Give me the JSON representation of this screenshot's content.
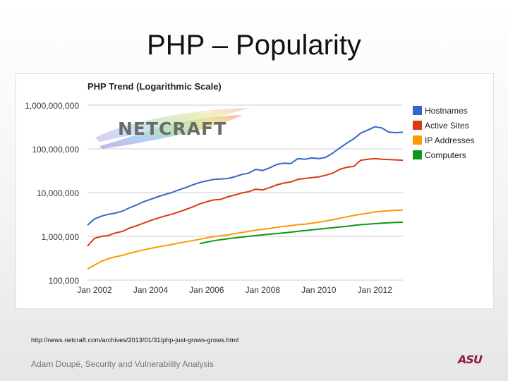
{
  "slide": {
    "title": "PHP – Popularity",
    "source_url": "http://news.netcraft.com/archives/2013/01/31/php-just-grows-grows.html",
    "footer": "Adam Doupé, Security and Vulnerability Analysis",
    "logo_text": "ASU"
  },
  "netcraft_logo_text": "NETCRAFT",
  "chart_data": {
    "type": "line",
    "title": "PHP Trend (Logarithmic Scale)",
    "xlabel": "",
    "ylabel": "",
    "y_scale": "log",
    "ylim": [
      100000,
      1000000000
    ],
    "y_ticks": [
      100000,
      1000000,
      10000000,
      100000000,
      1000000000
    ],
    "y_tick_labels": [
      "100,000",
      "1,000,000",
      "10,000,000",
      "100,000,000",
      "1,000,000,000"
    ],
    "xlim": [
      "2001-10",
      "2013-01"
    ],
    "x_ticks": [
      "2002-01",
      "2004-01",
      "2006-01",
      "2008-01",
      "2010-01",
      "2012-01"
    ],
    "x_tick_labels": [
      "Jan 2002",
      "Jan 2004",
      "Jan 2006",
      "Jan 2008",
      "Jan 2010",
      "Jan 2012"
    ],
    "grid": true,
    "legend": "right",
    "series": [
      {
        "name": "Hostnames",
        "color": "#3366cc",
        "points": [
          [
            "2001-10",
            1800000
          ],
          [
            "2002-01",
            2500000
          ],
          [
            "2002-04",
            2900000
          ],
          [
            "2002-07",
            3200000
          ],
          [
            "2002-10",
            3400000
          ],
          [
            "2003-01",
            3800000
          ],
          [
            "2003-04",
            4500000
          ],
          [
            "2003-07",
            5200000
          ],
          [
            "2003-10",
            6200000
          ],
          [
            "2004-01",
            7000000
          ],
          [
            "2004-04",
            8000000
          ],
          [
            "2004-07",
            9000000
          ],
          [
            "2004-10",
            10000000
          ],
          [
            "2005-01",
            11500000
          ],
          [
            "2005-04",
            13000000
          ],
          [
            "2005-07",
            15000000
          ],
          [
            "2005-10",
            17000000
          ],
          [
            "2006-01",
            18500000
          ],
          [
            "2006-04",
            20000000
          ],
          [
            "2006-07",
            20500000
          ],
          [
            "2006-10",
            21000000
          ],
          [
            "2007-01",
            23000000
          ],
          [
            "2007-04",
            26000000
          ],
          [
            "2007-07",
            28000000
          ],
          [
            "2007-10",
            34000000
          ],
          [
            "2008-01",
            32000000
          ],
          [
            "2008-04",
            37000000
          ],
          [
            "2008-07",
            44000000
          ],
          [
            "2008-10",
            47000000
          ],
          [
            "2009-01",
            46000000
          ],
          [
            "2009-04",
            60000000
          ],
          [
            "2009-07",
            58000000
          ],
          [
            "2009-10",
            62000000
          ],
          [
            "2010-01",
            60000000
          ],
          [
            "2010-04",
            64000000
          ],
          [
            "2010-07",
            80000000
          ],
          [
            "2010-10",
            105000000
          ],
          [
            "2011-01",
            135000000
          ],
          [
            "2011-04",
            170000000
          ],
          [
            "2011-07",
            230000000
          ],
          [
            "2011-10",
            270000000
          ],
          [
            "2012-01",
            320000000
          ],
          [
            "2012-04",
            300000000
          ],
          [
            "2012-07",
            240000000
          ],
          [
            "2012-10",
            235000000
          ],
          [
            "2013-01",
            240000000
          ]
        ]
      },
      {
        "name": "Active Sites",
        "color": "#dc3912",
        "points": [
          [
            "2001-10",
            600000
          ],
          [
            "2002-01",
            900000
          ],
          [
            "2002-04",
            1000000
          ],
          [
            "2002-07",
            1050000
          ],
          [
            "2002-10",
            1200000
          ],
          [
            "2003-01",
            1300000
          ],
          [
            "2003-04",
            1550000
          ],
          [
            "2003-07",
            1750000
          ],
          [
            "2003-10",
            2000000
          ],
          [
            "2004-01",
            2300000
          ],
          [
            "2004-04",
            2600000
          ],
          [
            "2004-07",
            2900000
          ],
          [
            "2004-10",
            3200000
          ],
          [
            "2005-01",
            3600000
          ],
          [
            "2005-04",
            4100000
          ],
          [
            "2005-07",
            4700000
          ],
          [
            "2005-10",
            5500000
          ],
          [
            "2006-01",
            6200000
          ],
          [
            "2006-04",
            6800000
          ],
          [
            "2006-07",
            7000000
          ],
          [
            "2006-10",
            8000000
          ],
          [
            "2007-01",
            8800000
          ],
          [
            "2007-04",
            9800000
          ],
          [
            "2007-07",
            10500000
          ],
          [
            "2007-10",
            12000000
          ],
          [
            "2008-01",
            11500000
          ],
          [
            "2008-04",
            13000000
          ],
          [
            "2008-07",
            15000000
          ],
          [
            "2008-10",
            16500000
          ],
          [
            "2009-01",
            17500000
          ],
          [
            "2009-04",
            20000000
          ],
          [
            "2009-07",
            21000000
          ],
          [
            "2009-10",
            22000000
          ],
          [
            "2010-01",
            23000000
          ],
          [
            "2010-04",
            25000000
          ],
          [
            "2010-07",
            28000000
          ],
          [
            "2010-10",
            34000000
          ],
          [
            "2011-01",
            38000000
          ],
          [
            "2011-04",
            40000000
          ],
          [
            "2011-07",
            55000000
          ],
          [
            "2011-10",
            58000000
          ],
          [
            "2012-01",
            60000000
          ],
          [
            "2012-04",
            58000000
          ],
          [
            "2012-07",
            57000000
          ],
          [
            "2012-10",
            56000000
          ],
          [
            "2013-01",
            55000000
          ]
        ]
      },
      {
        "name": "IP Addresses",
        "color": "#ff9900",
        "points": [
          [
            "2001-10",
            180000
          ],
          [
            "2002-01",
            220000
          ],
          [
            "2002-04",
            270000
          ],
          [
            "2002-07",
            310000
          ],
          [
            "2002-10",
            340000
          ],
          [
            "2003-01",
            370000
          ],
          [
            "2003-04",
            410000
          ],
          [
            "2003-07",
            450000
          ],
          [
            "2003-10",
            490000
          ],
          [
            "2004-01",
            530000
          ],
          [
            "2004-04",
            570000
          ],
          [
            "2004-07",
            610000
          ],
          [
            "2004-10",
            650000
          ],
          [
            "2005-01",
            700000
          ],
          [
            "2005-04",
            750000
          ],
          [
            "2005-07",
            800000
          ],
          [
            "2005-10",
            860000
          ],
          [
            "2006-01",
            920000
          ],
          [
            "2006-04",
            980000
          ],
          [
            "2006-07",
            1030000
          ],
          [
            "2006-10",
            1080000
          ],
          [
            "2007-01",
            1150000
          ],
          [
            "2007-04",
            1220000
          ],
          [
            "2007-07",
            1300000
          ],
          [
            "2007-10",
            1380000
          ],
          [
            "2008-01",
            1450000
          ],
          [
            "2008-04",
            1520000
          ],
          [
            "2008-07",
            1600000
          ],
          [
            "2008-10",
            1700000
          ],
          [
            "2009-01",
            1750000
          ],
          [
            "2009-04",
            1850000
          ],
          [
            "2009-07",
            1900000
          ],
          [
            "2009-10",
            2000000
          ],
          [
            "2010-01",
            2100000
          ],
          [
            "2010-04",
            2250000
          ],
          [
            "2010-07",
            2400000
          ],
          [
            "2010-10",
            2600000
          ],
          [
            "2011-01",
            2800000
          ],
          [
            "2011-04",
            3000000
          ],
          [
            "2011-07",
            3200000
          ],
          [
            "2011-10",
            3400000
          ],
          [
            "2012-01",
            3600000
          ],
          [
            "2012-04",
            3750000
          ],
          [
            "2012-07",
            3850000
          ],
          [
            "2012-10",
            3950000
          ],
          [
            "2013-01",
            4000000
          ]
        ]
      },
      {
        "name": "Computers",
        "color": "#109618",
        "points": [
          [
            "2005-10",
            680000
          ],
          [
            "2006-01",
            740000
          ],
          [
            "2006-04",
            790000
          ],
          [
            "2006-07",
            840000
          ],
          [
            "2006-10",
            880000
          ],
          [
            "2007-01",
            920000
          ],
          [
            "2007-04",
            960000
          ],
          [
            "2007-07",
            1000000
          ],
          [
            "2007-10",
            1040000
          ],
          [
            "2008-01",
            1080000
          ],
          [
            "2008-04",
            1120000
          ],
          [
            "2008-07",
            1160000
          ],
          [
            "2008-10",
            1200000
          ],
          [
            "2009-01",
            1250000
          ],
          [
            "2009-04",
            1300000
          ],
          [
            "2009-07",
            1350000
          ],
          [
            "2009-10",
            1400000
          ],
          [
            "2010-01",
            1460000
          ],
          [
            "2010-04",
            1520000
          ],
          [
            "2010-07",
            1580000
          ],
          [
            "2010-10",
            1640000
          ],
          [
            "2011-01",
            1700000
          ],
          [
            "2011-04",
            1780000
          ],
          [
            "2011-07",
            1850000
          ],
          [
            "2011-10",
            1900000
          ],
          [
            "2012-01",
            1950000
          ],
          [
            "2012-04",
            2000000
          ],
          [
            "2012-07",
            2050000
          ],
          [
            "2012-10",
            2080000
          ],
          [
            "2013-01",
            2100000
          ]
        ]
      }
    ]
  }
}
